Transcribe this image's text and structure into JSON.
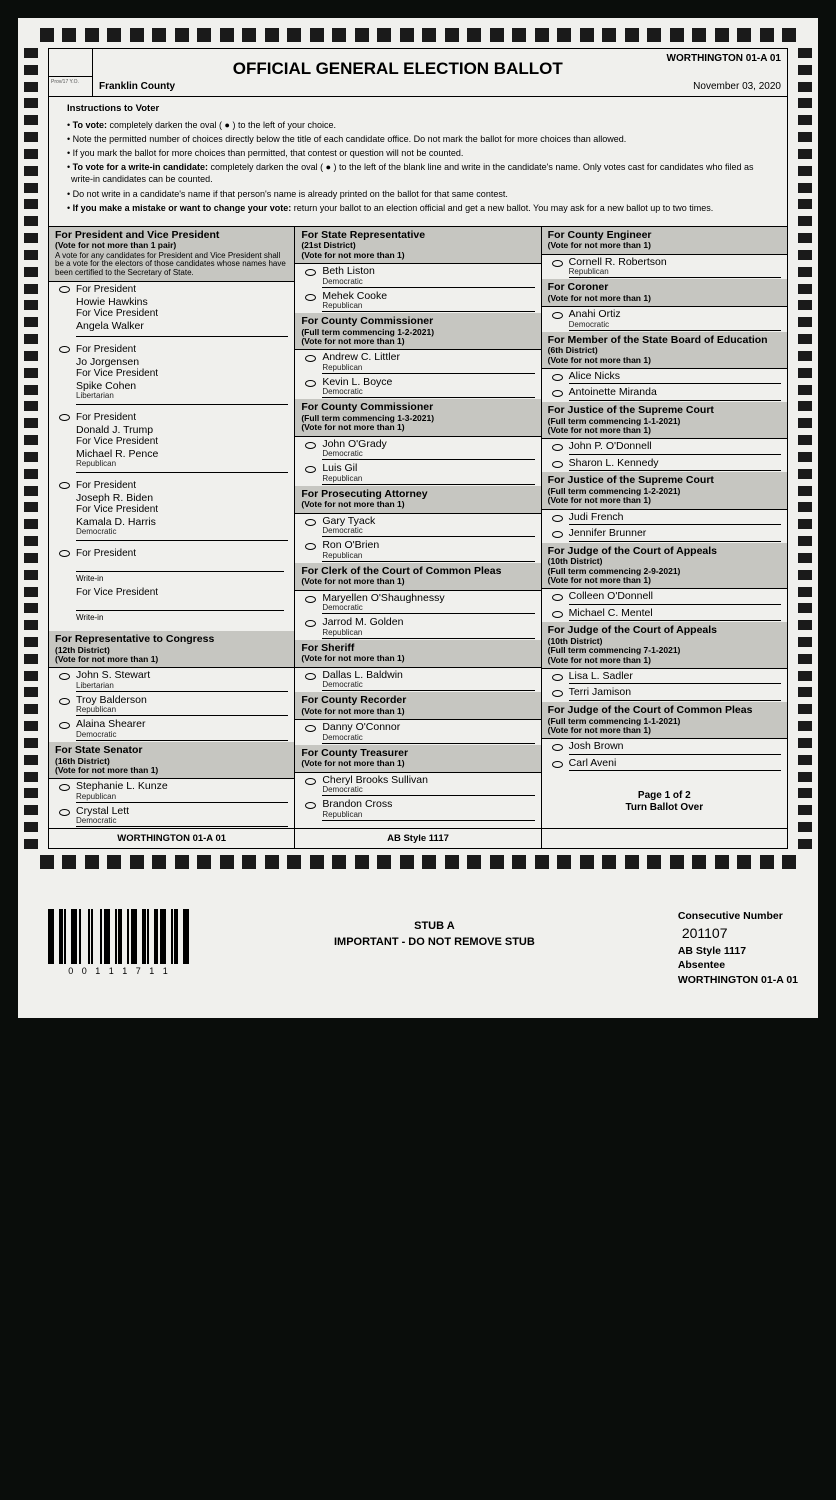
{
  "header": {
    "title": "OFFICIAL GENERAL ELECTION BALLOT",
    "precinct_top": "WORTHINGTON 01-A 01",
    "county": "Franklin County",
    "date": "November 03, 2020",
    "stub_small": "Prov/17 Y.O."
  },
  "instructions": {
    "title": "Instructions to Voter",
    "lines": [
      "• To vote: completely darken the oval ( ● ) to the left of your choice.",
      "• Note the permitted number of choices directly below the title of each candidate office. Do not mark the ballot for more choices than allowed.",
      "• If you mark the ballot for more choices than permitted, that contest or question will not be counted.",
      "• To vote for a write-in candidate: completely darken the oval ( ● ) to the left of the blank line and write in the candidate's name. Only votes cast for candidates who filed as write-in candidates can be counted.",
      "• Do not write in a candidate's name if that person's name is already printed on the ballot for that same contest.",
      "• If you make a mistake or want to change your vote: return your ballot to an election official and get a new ballot. You may ask for a new ballot up to two times."
    ]
  },
  "president": {
    "title": "For President and Vice President",
    "sub": "(Vote for not more than 1 pair)",
    "note": "A vote for any candidates for President and Vice President shall be a vote for the electors of those candidates whose names have been certified to the Secretary of State.",
    "tickets": [
      {
        "p": "Howie Hawkins",
        "vp": "Angela Walker",
        "party": ""
      },
      {
        "p": "Jo Jorgensen",
        "vp": "Spike Cohen",
        "party": "Libertarian"
      },
      {
        "p": "Donald J. Trump",
        "vp": "Michael R. Pence",
        "party": "Republican"
      },
      {
        "p": "Joseph R. Biden",
        "vp": "Kamala D. Harris",
        "party": "Democratic"
      }
    ],
    "writein_p": "For President",
    "writein_vp": "For Vice President",
    "writein_lbl": "Write-in"
  },
  "contests_col1": [
    {
      "title": "For Representative to Congress",
      "sub": "(12th District)",
      "note": "(Vote for not more than 1)",
      "cands": [
        {
          "n": "John S. Stewart",
          "p": "Libertarian"
        },
        {
          "n": "Troy Balderson",
          "p": "Republican"
        },
        {
          "n": "Alaina Shearer",
          "p": "Democratic"
        }
      ]
    },
    {
      "title": "For State Senator",
      "sub": "(16th District)",
      "note": "(Vote for not more than 1)",
      "cands": [
        {
          "n": "Stephanie L. Kunze",
          "p": "Republican"
        },
        {
          "n": "Crystal Lett",
          "p": "Democratic"
        }
      ]
    }
  ],
  "contests_col2": [
    {
      "title": "For State Representative",
      "sub": "(21st District)",
      "note": "(Vote for not more than 1)",
      "cands": [
        {
          "n": "Beth Liston",
          "p": "Democratic"
        },
        {
          "n": "Mehek Cooke",
          "p": "Republican"
        }
      ]
    },
    {
      "title": "For County Commissioner",
      "sub": "(Full term commencing 1-2-2021)",
      "note": "(Vote for not more than 1)",
      "cands": [
        {
          "n": "Andrew C. Littler",
          "p": "Republican"
        },
        {
          "n": "Kevin L. Boyce",
          "p": "Democratic"
        }
      ]
    },
    {
      "title": "For County Commissioner",
      "sub": "(Full term commencing 1-3-2021)",
      "note": "(Vote for not more than 1)",
      "cands": [
        {
          "n": "John O'Grady",
          "p": "Democratic"
        },
        {
          "n": "Luis Gil",
          "p": "Republican"
        }
      ]
    },
    {
      "title": "For Prosecuting Attorney",
      "sub": "",
      "note": "(Vote for not more than 1)",
      "cands": [
        {
          "n": "Gary Tyack",
          "p": "Democratic"
        },
        {
          "n": "Ron O'Brien",
          "p": "Republican"
        }
      ]
    },
    {
      "title": "For Clerk of the Court of Common Pleas",
      "sub": "",
      "note": "(Vote for not more than 1)",
      "cands": [
        {
          "n": "Maryellen O'Shaughnessy",
          "p": "Democratic"
        },
        {
          "n": "Jarrod M. Golden",
          "p": "Republican"
        }
      ]
    },
    {
      "title": "For Sheriff",
      "sub": "",
      "note": "(Vote for not more than 1)",
      "cands": [
        {
          "n": "Dallas L. Baldwin",
          "p": "Democratic"
        }
      ]
    },
    {
      "title": "For County Recorder",
      "sub": "",
      "note": "(Vote for not more than 1)",
      "cands": [
        {
          "n": "Danny O'Connor",
          "p": "Democratic"
        }
      ]
    },
    {
      "title": "For County Treasurer",
      "sub": "",
      "note": "(Vote for not more than 1)",
      "cands": [
        {
          "n": "Cheryl Brooks Sullivan",
          "p": "Democratic"
        },
        {
          "n": "Brandon Cross",
          "p": "Republican"
        }
      ]
    }
  ],
  "contests_col3": [
    {
      "title": "For County Engineer",
      "sub": "",
      "note": "(Vote for not more than 1)",
      "cands": [
        {
          "n": "Cornell R. Robertson",
          "p": "Republican"
        }
      ]
    },
    {
      "title": "For Coroner",
      "sub": "",
      "note": "(Vote for not more than 1)",
      "cands": [
        {
          "n": "Anahi Ortiz",
          "p": "Democratic"
        }
      ]
    },
    {
      "title": "For Member of the State Board of Education",
      "sub": "(6th District)",
      "note": "(Vote for not more than 1)",
      "cands": [
        {
          "n": "Alice Nicks",
          "p": ""
        },
        {
          "n": "Antoinette Miranda",
          "p": ""
        }
      ]
    },
    {
      "title": "For Justice of the Supreme Court",
      "sub": "(Full term commencing 1-1-2021)",
      "note": "(Vote for not more than 1)",
      "cands": [
        {
          "n": "John P. O'Donnell",
          "p": ""
        },
        {
          "n": "Sharon L. Kennedy",
          "p": ""
        }
      ]
    },
    {
      "title": "For Justice of the Supreme Court",
      "sub": "(Full term commencing 1-2-2021)",
      "note": "(Vote for not more than 1)",
      "cands": [
        {
          "n": "Judi French",
          "p": ""
        },
        {
          "n": "Jennifer Brunner",
          "p": ""
        }
      ]
    },
    {
      "title": "For Judge of the Court of Appeals",
      "sub": "(10th District)",
      "sub2": "(Full term commencing 2-9-2021)",
      "note": "(Vote for not more than 1)",
      "cands": [
        {
          "n": "Colleen O'Donnell",
          "p": ""
        },
        {
          "n": "Michael C. Mentel",
          "p": ""
        }
      ]
    },
    {
      "title": "For Judge of the Court of Appeals",
      "sub": "(10th District)",
      "sub2": "(Full term commencing 7-1-2021)",
      "note": "(Vote for not more than 1)",
      "cands": [
        {
          "n": "Lisa L. Sadler",
          "p": ""
        },
        {
          "n": "Terri Jamison",
          "p": ""
        }
      ]
    },
    {
      "title": "For Judge of the Court of Common Pleas",
      "sub": "(Full term commencing 1-1-2021)",
      "note": "(Vote for not more than 1)",
      "cands": [
        {
          "n": "Josh Brown",
          "p": ""
        },
        {
          "n": "Carl Aveni",
          "p": ""
        }
      ]
    }
  ],
  "footer": {
    "left": "WORTHINGTON 01-A 01",
    "center": "AB Style 1117",
    "page": "Page 1 of 2",
    "turn": "Turn Ballot Over"
  },
  "stub": {
    "barcode_num": "0 0 1 1 1 7 1 1",
    "title": "STUB A",
    "line2": "IMPORTANT - DO NOT REMOVE STUB",
    "cn_label": "Consecutive Number",
    "cn": "201107",
    "style": "AB Style 1117",
    "type": "Absentee",
    "precinct": "WORTHINGTON 01-A 01"
  },
  "colors": {
    "bg": "#0a0d0b",
    "paper": "#f0f0ed",
    "shade": "#c6c6c1"
  }
}
